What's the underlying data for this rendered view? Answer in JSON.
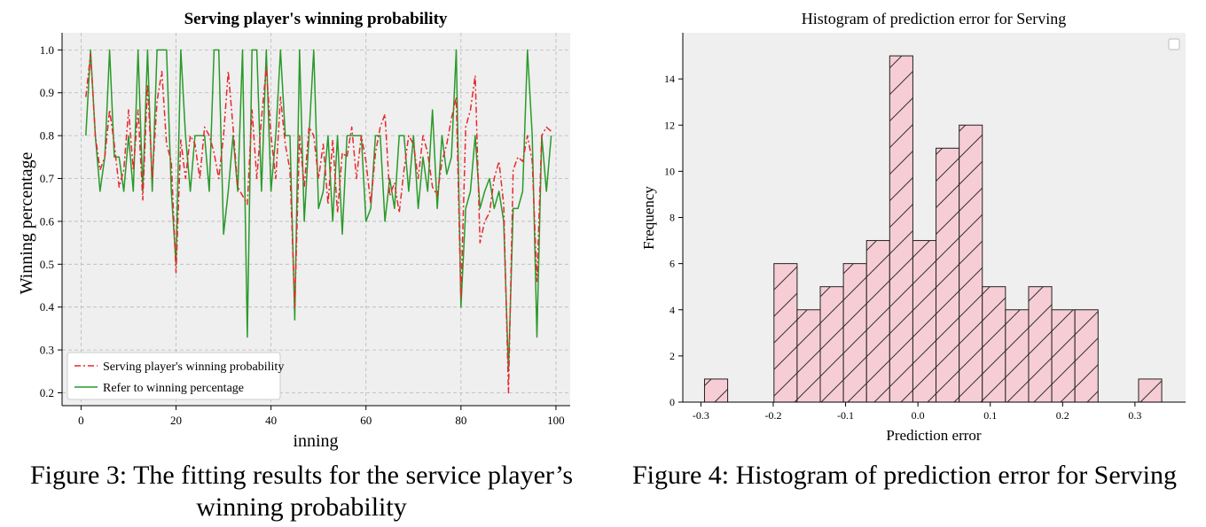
{
  "figures": {
    "left_caption": "Figure 3: The fitting results for the service player’s winning probability",
    "right_caption": "Figure 4: Histogram of prediction error for Serving"
  },
  "chart_data": [
    {
      "type": "line",
      "title": "Serving player's  winning probability",
      "xlabel": "inning",
      "ylabel": "Winning percentage",
      "xlim": [
        -4,
        103
      ],
      "ylim": [
        0.17,
        1.04
      ],
      "xticks": [
        0,
        20,
        40,
        60,
        80,
        100
      ],
      "yticks": [
        0.2,
        0.3,
        0.4,
        0.5,
        0.6,
        0.7,
        0.8,
        0.9,
        1.0
      ],
      "grid": true,
      "legend_position": "lower-left",
      "x": [
        1,
        2,
        3,
        4,
        5,
        6,
        7,
        8,
        9,
        10,
        11,
        12,
        13,
        14,
        15,
        16,
        17,
        18,
        19,
        20,
        21,
        22,
        23,
        24,
        25,
        26,
        27,
        28,
        29,
        30,
        31,
        32,
        33,
        34,
        35,
        36,
        37,
        38,
        39,
        40,
        41,
        42,
        43,
        44,
        45,
        46,
        47,
        48,
        49,
        50,
        51,
        52,
        53,
        54,
        55,
        56,
        57,
        58,
        59,
        60,
        61,
        62,
        63,
        64,
        65,
        66,
        67,
        68,
        69,
        70,
        71,
        72,
        73,
        74,
        75,
        76,
        77,
        78,
        79,
        80,
        81,
        82,
        83,
        84,
        85,
        86,
        87,
        88,
        89,
        90,
        91,
        92,
        93,
        94,
        95,
        96,
        97,
        98,
        99
      ],
      "series": [
        {
          "name": "Serving player's  winning probability",
          "color": "#e8282d",
          "style": "dashdot",
          "values": [
            0.89,
            0.99,
            0.8,
            0.72,
            0.75,
            0.86,
            0.78,
            0.68,
            0.72,
            0.86,
            0.72,
            0.86,
            0.65,
            0.92,
            0.7,
            0.88,
            0.95,
            0.78,
            0.74,
            0.48,
            0.79,
            0.7,
            0.8,
            0.78,
            0.7,
            0.82,
            0.8,
            0.76,
            0.7,
            0.8,
            0.95,
            0.82,
            0.68,
            0.66,
            0.64,
            0.86,
            0.7,
            0.84,
            0.96,
            0.8,
            0.7,
            0.89,
            0.78,
            0.72,
            0.4,
            0.8,
            0.68,
            0.82,
            0.8,
            0.7,
            0.78,
            0.64,
            0.79,
            0.62,
            0.76,
            0.75,
            0.82,
            0.7,
            0.8,
            0.74,
            0.64,
            0.76,
            0.82,
            0.85,
            0.66,
            0.69,
            0.62,
            0.72,
            0.8,
            0.78,
            0.7,
            0.8,
            0.76,
            0.68,
            0.66,
            0.74,
            0.78,
            0.84,
            0.89,
            0.42,
            0.82,
            0.86,
            0.94,
            0.55,
            0.6,
            0.62,
            0.7,
            0.74,
            0.64,
            0.2,
            0.72,
            0.75,
            0.74,
            0.8,
            0.74,
            0.46,
            0.8,
            0.82,
            0.81
          ]
        },
        {
          "name": "Refer to winning percentage",
          "color": "#2a9a2a",
          "style": "solid",
          "values": [
            0.8,
            1.0,
            0.8,
            0.67,
            0.75,
            1.0,
            0.75,
            0.75,
            0.67,
            0.8,
            0.67,
            1.0,
            0.67,
            1.0,
            0.67,
            1.0,
            1.0,
            1.0,
            0.67,
            0.5,
            1.0,
            0.8,
            0.67,
            0.8,
            0.8,
            0.8,
            0.67,
            1.0,
            1.0,
            0.57,
            0.67,
            0.8,
            0.67,
            1.0,
            0.33,
            1.0,
            1.0,
            0.67,
            1.0,
            0.67,
            0.8,
            1.0,
            0.8,
            0.8,
            0.37,
            1.0,
            0.6,
            0.8,
            1.0,
            0.63,
            0.67,
            0.8,
            0.6,
            0.8,
            0.57,
            0.8,
            0.8,
            0.8,
            0.8,
            0.6,
            0.63,
            0.8,
            0.8,
            0.6,
            0.7,
            0.63,
            0.8,
            0.8,
            0.67,
            0.8,
            0.63,
            0.75,
            0.67,
            0.86,
            0.63,
            0.8,
            0.71,
            0.75,
            1.0,
            0.4,
            0.63,
            0.67,
            0.8,
            0.63,
            0.67,
            0.7,
            0.63,
            0.67,
            0.6,
            0.25,
            0.63,
            0.63,
            0.67,
            1.0,
            0.8,
            0.33,
            0.8,
            0.67,
            0.8
          ]
        }
      ]
    },
    {
      "type": "bar",
      "subtype": "histogram",
      "title": "Histogram of prediction error for Serving",
      "xlabel": "Prediction error",
      "ylabel": "Frequency",
      "xlim": [
        -0.325,
        0.37
      ],
      "ylim": [
        0,
        16
      ],
      "xticks": [
        -0.3,
        -0.2,
        -0.1,
        0.0,
        0.1,
        0.2,
        0.3
      ],
      "xtick_labels": [
        "-0.3",
        "-0.2",
        "-0.1",
        "0.0",
        "0.1",
        "0.2",
        "0.3"
      ],
      "yticks": [
        0,
        2,
        4,
        6,
        8,
        10,
        12,
        14
      ],
      "grid": false,
      "bar_color": "#f7cdd5",
      "hatch": "/",
      "bins": [
        {
          "x0": -0.295,
          "x1": -0.263,
          "count": 1
        },
        {
          "x0": -0.199,
          "x1": -0.167,
          "count": 6
        },
        {
          "x0": -0.167,
          "x1": -0.135,
          "count": 4
        },
        {
          "x0": -0.135,
          "x1": -0.103,
          "count": 5
        },
        {
          "x0": -0.103,
          "x1": -0.071,
          "count": 6
        },
        {
          "x0": -0.071,
          "x1": -0.039,
          "count": 7
        },
        {
          "x0": -0.039,
          "x1": -0.007,
          "count": 15
        },
        {
          "x0": -0.007,
          "x1": 0.025,
          "count": 7
        },
        {
          "x0": 0.025,
          "x1": 0.057,
          "count": 11
        },
        {
          "x0": 0.057,
          "x1": 0.089,
          "count": 12
        },
        {
          "x0": 0.089,
          "x1": 0.121,
          "count": 5
        },
        {
          "x0": 0.121,
          "x1": 0.153,
          "count": 4
        },
        {
          "x0": 0.153,
          "x1": 0.185,
          "count": 5
        },
        {
          "x0": 0.185,
          "x1": 0.217,
          "count": 4
        },
        {
          "x0": 0.217,
          "x1": 0.249,
          "count": 4
        },
        {
          "x0": 0.305,
          "x1": 0.337,
          "count": 1
        }
      ]
    }
  ]
}
